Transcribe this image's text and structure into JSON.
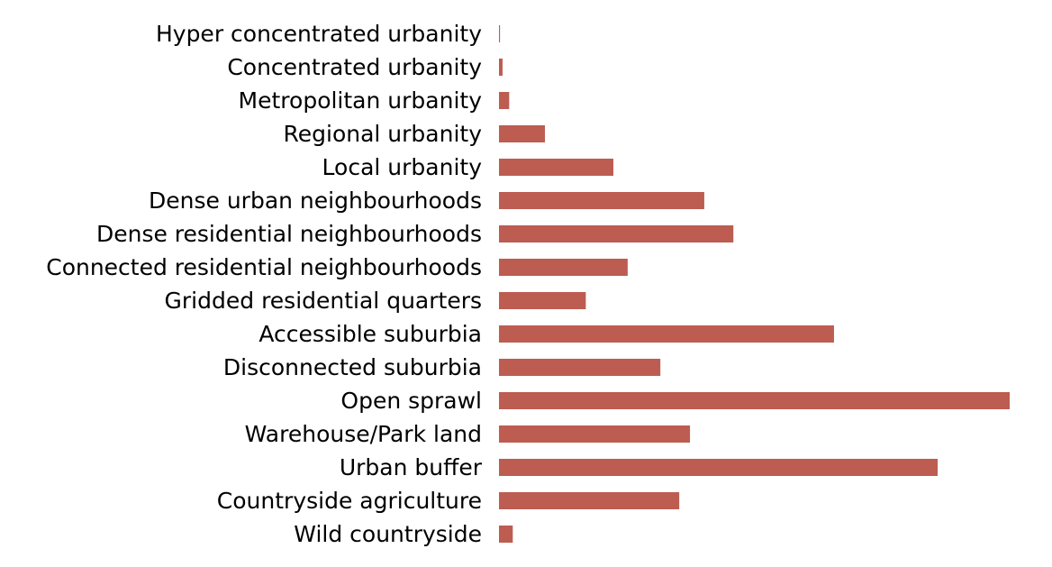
{
  "chart_data": {
    "type": "bar",
    "orientation": "horizontal",
    "title": "",
    "xlabel": "",
    "ylabel": "",
    "axes_visible": false,
    "grid": false,
    "bar_color": "#bd5c51",
    "xlim": [
      0,
      100
    ],
    "categories": [
      "Hyper concentrated urbanity",
      "Concentrated urbanity",
      "Metropolitan urbanity",
      "Regional urbanity",
      "Local urbanity",
      "Dense urban neighbourhoods",
      "Dense residential neighbourhoods",
      "Connected residential neighbourhoods",
      "Gridded residential quarters",
      "Accessible suburbia",
      "Disconnected suburbia",
      "Open sprawl",
      "Warehouse/Park land",
      "Urban buffer",
      "Countryside agriculture",
      "Wild countryside"
    ],
    "values": [
      0.2,
      0.7,
      2.0,
      9.0,
      22.4,
      40.2,
      45.9,
      25.2,
      17.0,
      65.6,
      31.6,
      100.0,
      37.4,
      85.9,
      35.3,
      2.7
    ]
  }
}
